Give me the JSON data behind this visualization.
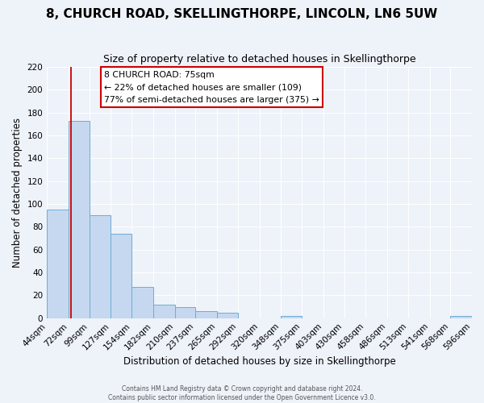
{
  "title": "8, CHURCH ROAD, SKELLINGTHORPE, LINCOLN, LN6 5UW",
  "subtitle": "Size of property relative to detached houses in Skellingthorpe",
  "xlabel": "Distribution of detached houses by size in Skellingthorpe",
  "ylabel": "Number of detached properties",
  "footer_line1": "Contains HM Land Registry data © Crown copyright and database right 2024.",
  "footer_line2": "Contains public sector information licensed under the Open Government Licence v3.0.",
  "bin_labels": [
    "44sqm",
    "72sqm",
    "99sqm",
    "127sqm",
    "154sqm",
    "182sqm",
    "210sqm",
    "237sqm",
    "265sqm",
    "292sqm",
    "320sqm",
    "348sqm",
    "375sqm",
    "403sqm",
    "430sqm",
    "458sqm",
    "486sqm",
    "513sqm",
    "541sqm",
    "568sqm",
    "596sqm"
  ],
  "bar_values": [
    95,
    173,
    90,
    74,
    27,
    12,
    10,
    6,
    5,
    0,
    0,
    2,
    0,
    0,
    0,
    0,
    0,
    0,
    0,
    2
  ],
  "bar_color": "#c5d8f0",
  "bar_edge_color": "#6baed6",
  "property_line_x": 75,
  "property_line_color": "#cc0000",
  "annotation_line1": "8 CHURCH ROAD: 75sqm",
  "annotation_line2": "← 22% of detached houses are smaller (109)",
  "annotation_line3": "77% of semi-detached houses are larger (375) →",
  "ylim": [
    0,
    220
  ],
  "yticks": [
    0,
    20,
    40,
    60,
    80,
    100,
    120,
    140,
    160,
    180,
    200,
    220
  ],
  "bg_color": "#eef2f9",
  "grid_color": "#ffffff",
  "title_fontsize": 11,
  "subtitle_fontsize": 9,
  "axis_fontsize": 8.5,
  "tick_fontsize": 7.5
}
